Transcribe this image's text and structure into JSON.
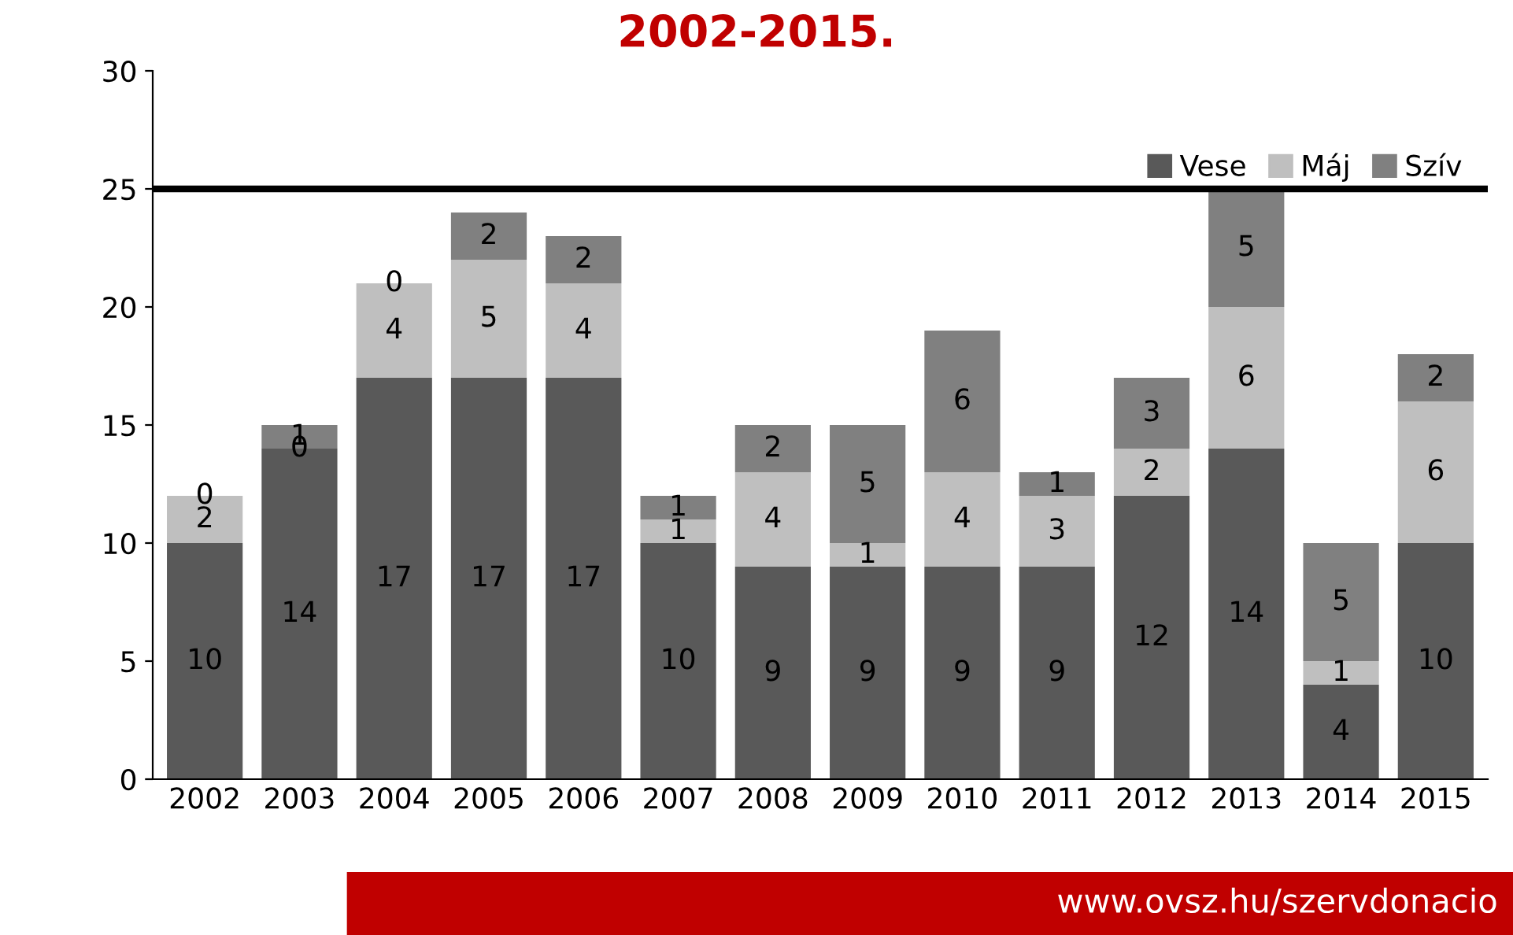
{
  "chart_data": {
    "type": "bar",
    "stacked": true,
    "title": "2002-2015.",
    "categories": [
      "2002",
      "2003",
      "2004",
      "2005",
      "2006",
      "2007",
      "2008",
      "2009",
      "2010",
      "2011",
      "2012",
      "2013",
      "2014",
      "2015"
    ],
    "series": [
      {
        "name": "Vese",
        "color": "#595959",
        "values": [
          10,
          14,
          17,
          17,
          17,
          10,
          9,
          9,
          9,
          9,
          12,
          14,
          4,
          10
        ]
      },
      {
        "name": "Máj",
        "color": "#bfbfbf",
        "values": [
          2,
          0,
          4,
          5,
          4,
          1,
          4,
          1,
          4,
          3,
          2,
          6,
          1,
          6
        ]
      },
      {
        "name": "Szív",
        "color": "#808080",
        "values": [
          0,
          1,
          0,
          2,
          2,
          1,
          2,
          5,
          6,
          1,
          3,
          5,
          5,
          2
        ]
      }
    ],
    "ylim": [
      0,
      30
    ],
    "yticks": [
      0,
      5,
      10,
      15,
      20,
      25,
      30
    ],
    "grid": false,
    "legend": "top right",
    "data_labels": true,
    "ref_lines": [
      {
        "axis": "y",
        "value": 25,
        "color": "#000000"
      }
    ],
    "annotations": [
      "www.ovsz.hu/szervdonacio"
    ]
  }
}
